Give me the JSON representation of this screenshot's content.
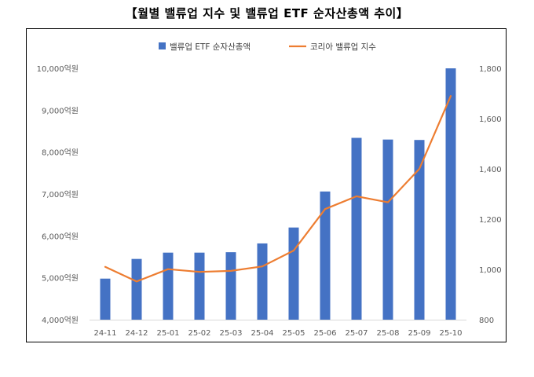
{
  "title": "【월별 밸류업 지수 및 밸류업 ETF 순자산총액 추이】",
  "chart_data": {
    "type": "bar+line",
    "categories": [
      "24-11",
      "24-12",
      "25-01",
      "25-02",
      "25-03",
      "25-04",
      "25-05",
      "25-06",
      "25-07",
      "25-08",
      "25-09",
      "25-10"
    ],
    "series": [
      {
        "name": "밸류업 ETF 순자산총액",
        "type": "bar",
        "axis": "left",
        "color": "#4472C4",
        "values": [
          4980,
          5450,
          5600,
          5600,
          5610,
          5820,
          6200,
          7060,
          8340,
          8300,
          8290,
          10000
        ]
      },
      {
        "name": "코리아 밸류업 지수",
        "type": "line",
        "axis": "right",
        "color": "#ED7D31",
        "values": [
          1010,
          952,
          1001,
          990,
          994,
          1012,
          1075,
          1240,
          1291,
          1267,
          1400,
          1690
        ]
      }
    ],
    "y_left": {
      "min": 4000,
      "max": 10000,
      "step": 1000,
      "ticks": [
        "4,000억원",
        "5,000억원",
        "6,000억원",
        "7,000억원",
        "8,000억원",
        "9,000억원",
        "10,000억원"
      ]
    },
    "y_right": {
      "min": 800,
      "max": 1800,
      "step": 200,
      "ticks": [
        "800",
        "1,000",
        "1,200",
        "1,400",
        "1,600",
        "1,800"
      ]
    },
    "legend_position": "top",
    "grid": false
  }
}
